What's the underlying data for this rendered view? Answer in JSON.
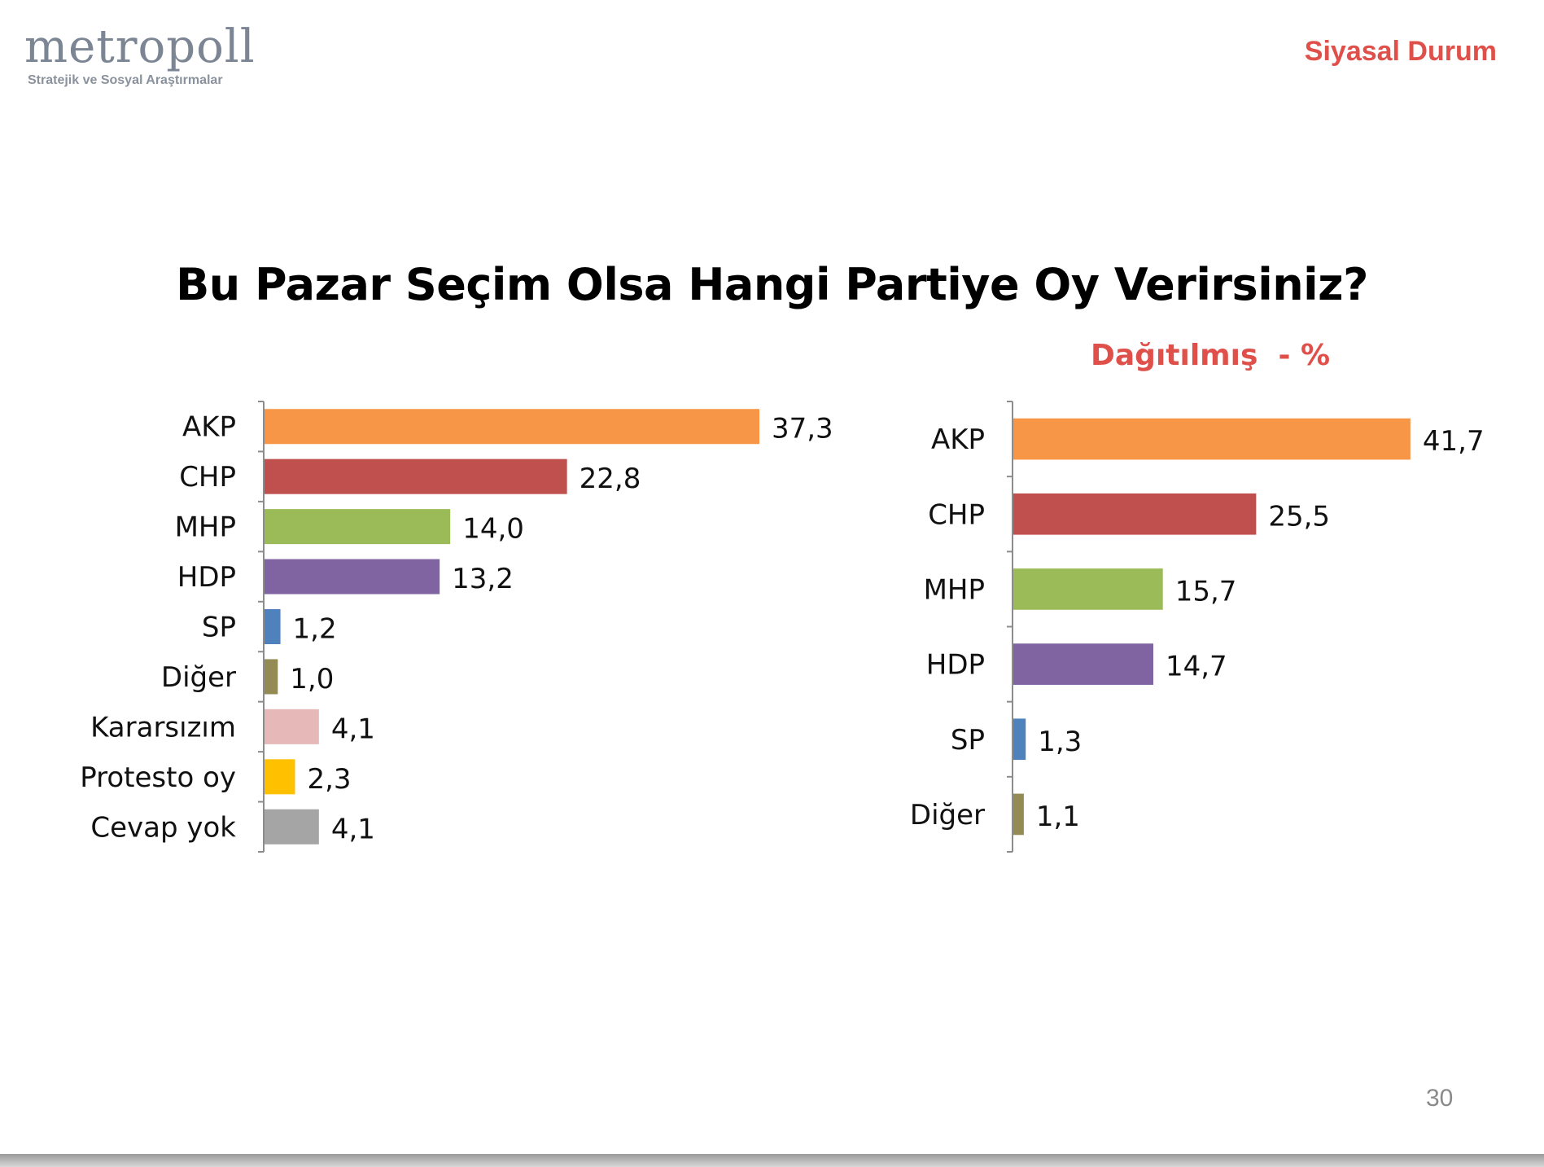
{
  "header": {
    "logo_text": "metropoll",
    "logo_tagline": "Stratejik ve Sosyal Araştırmalar",
    "section_title": "Siyasal Durum"
  },
  "title": "Bu Pazar Seçim Olsa Hangi Partiye Oy Verirsiniz?",
  "page_number": "30",
  "chart_data": [
    {
      "type": "bar",
      "orientation": "horizontal",
      "title": "",
      "categories": [
        "AKP",
        "CHP",
        "MHP",
        "HDP",
        "SP",
        "Diğer",
        "Kararsızım",
        "Protesto oy",
        "Cevap yok"
      ],
      "values": [
        37.3,
        22.8,
        14.0,
        13.2,
        1.2,
        1.0,
        4.1,
        2.3,
        4.1
      ],
      "value_labels": [
        "37,3",
        "22,8",
        "14,0",
        "13,2",
        "1,2",
        "1,0",
        "4,1",
        "2,3",
        "4,1"
      ],
      "colors": [
        "#f79646",
        "#c0504d",
        "#9bbb59",
        "#8064a2",
        "#4f81bd",
        "#948a54",
        "#e6b9b8",
        "#ffc000",
        "#a5a5a5"
      ],
      "xlim": [
        0,
        50
      ],
      "grid": false,
      "legend": "none"
    },
    {
      "type": "bar",
      "orientation": "horizontal",
      "title": "Dağıtılmış  - %",
      "categories": [
        "AKP",
        "CHP",
        "MHP",
        "HDP",
        "SP",
        "Diğer"
      ],
      "values": [
        41.7,
        25.5,
        15.7,
        14.7,
        1.3,
        1.1
      ],
      "value_labels": [
        "41,7",
        "25,5",
        "15,7",
        "14,7",
        "1,3",
        "1,1"
      ],
      "colors": [
        "#f79646",
        "#c0504d",
        "#9bbb59",
        "#8064a2",
        "#4f81bd",
        "#948a54"
      ],
      "xlim": [
        0,
        50
      ],
      "grid": false,
      "legend": "none"
    }
  ]
}
